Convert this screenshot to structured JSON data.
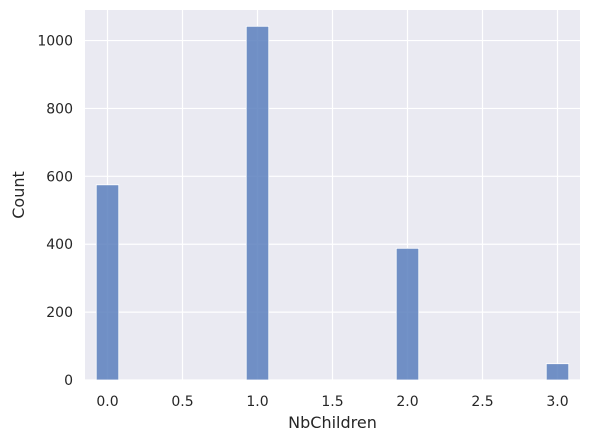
{
  "chart_data": {
    "type": "bar",
    "title": "",
    "xlabel": "NbChildren",
    "ylabel": "Count",
    "x_ticks": [
      "0.0",
      "0.5",
      "1.0",
      "1.5",
      "2.0",
      "2.5",
      "3.0"
    ],
    "y_ticks": [
      "0",
      "200",
      "400",
      "600",
      "800",
      "1000"
    ],
    "xlim": [
      -0.15,
      3.15
    ],
    "ylim": [
      0,
      1090
    ],
    "grid": true,
    "bin_width": 0.15,
    "bins": [
      {
        "x": 0.0,
        "value": 575
      },
      {
        "x": 1.0,
        "value": 1042
      },
      {
        "x": 2.0,
        "value": 388
      },
      {
        "x": 3.0,
        "value": 48
      }
    ],
    "colors": {
      "bar": "#5b7fbd",
      "plot_background": "#eaeaf2",
      "grid": "#ffffff",
      "text": "#262626"
    }
  }
}
